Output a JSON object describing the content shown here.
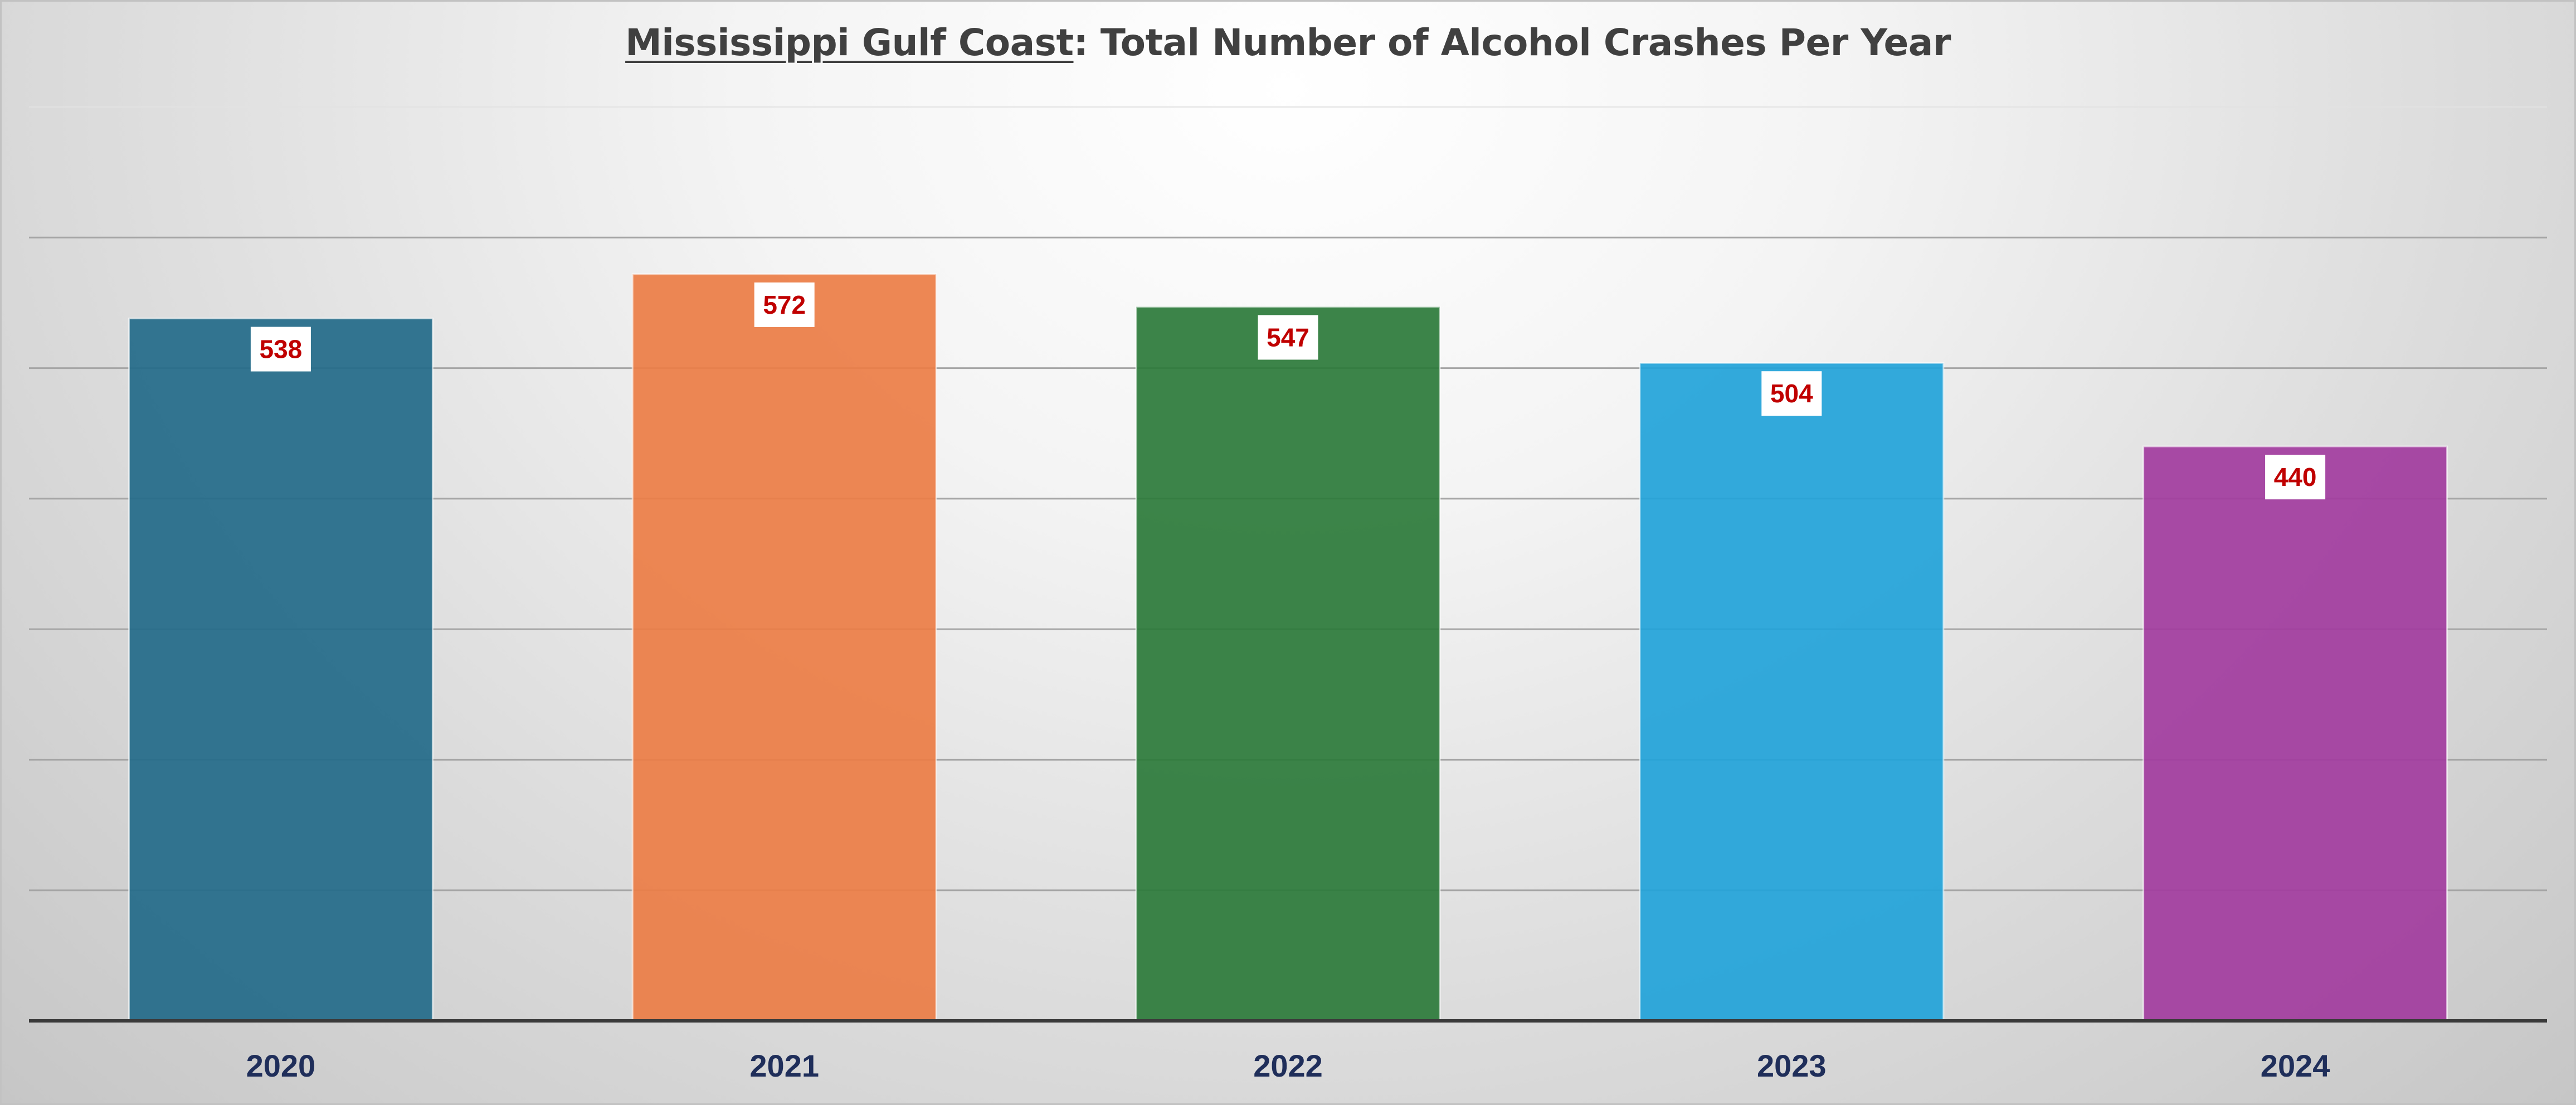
{
  "chart_data": {
    "type": "bar",
    "title_underlined": "Mississippi Gulf Coast",
    "title_rest": ": Total Number of Alcohol Crashes Per Year",
    "categories": [
      "2020",
      "2021",
      "2022",
      "2023",
      "2024"
    ],
    "values": [
      538,
      572,
      547,
      504,
      440
    ],
    "data_labels": [
      "538",
      "572",
      "547",
      "504",
      "440"
    ],
    "colors": [
      "#236a89",
      "#eb7d45",
      "#2b7a3a",
      "#22a3d9",
      "#a23c9e"
    ],
    "ylim": [
      0,
      700
    ],
    "gridline_step": 100,
    "xlabel": "",
    "ylabel": "",
    "grid": true,
    "legend": "none"
  }
}
